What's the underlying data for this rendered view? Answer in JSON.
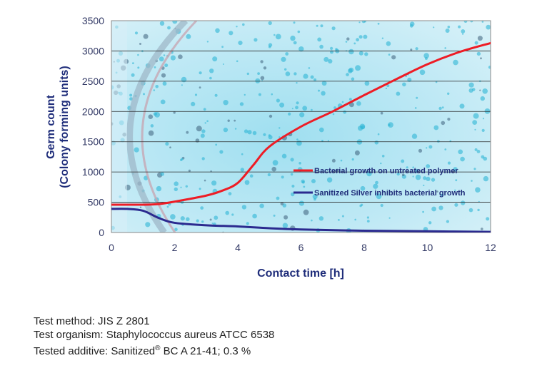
{
  "chart_data": {
    "type": "line",
    "xlabel": "Contact time [h]",
    "ylabel_line1": "Germ count",
    "ylabel_line2": "(Colony forming units)",
    "xlim": [
      0,
      12
    ],
    "ylim": [
      0,
      3500
    ],
    "xticks": [
      "0",
      "2",
      "4",
      "6",
      "8",
      "10",
      "12"
    ],
    "yticks": [
      "0",
      "500",
      "1000",
      "1500",
      "2000",
      "2500",
      "3000",
      "3500"
    ],
    "grid": "horizontal",
    "background": "photo of bacterial colonies on a petri dish",
    "series": [
      {
        "name": "Bacterial growth on untreated polymer",
        "color": "#ee1c25",
        "x": [
          0,
          1,
          1.5,
          2,
          3,
          3.5,
          4,
          4.5,
          5,
          6,
          7,
          8,
          9,
          10,
          11,
          12
        ],
        "y": [
          460,
          460,
          470,
          510,
          610,
          690,
          820,
          1120,
          1420,
          1750,
          2000,
          2270,
          2530,
          2780,
          2980,
          3130
        ]
      },
      {
        "name": "Sanitized Silver inhibits bacterial growth",
        "color": "#2b2a8f",
        "x": [
          0,
          0.5,
          1,
          1.5,
          2,
          3,
          4,
          5,
          6,
          8,
          10,
          12
        ],
        "y": [
          390,
          390,
          360,
          240,
          160,
          120,
          100,
          70,
          50,
          30,
          20,
          10
        ]
      }
    ]
  },
  "notes": {
    "method": "Test method: JIS Z 2801",
    "organism": "Test organism: Staphylococcus aureus ATCC 6538",
    "additive_prefix": "Tested additive: Sanitized",
    "additive_mark": "®",
    "additive_suffix": " BC A 21-41; 0.3 %"
  }
}
